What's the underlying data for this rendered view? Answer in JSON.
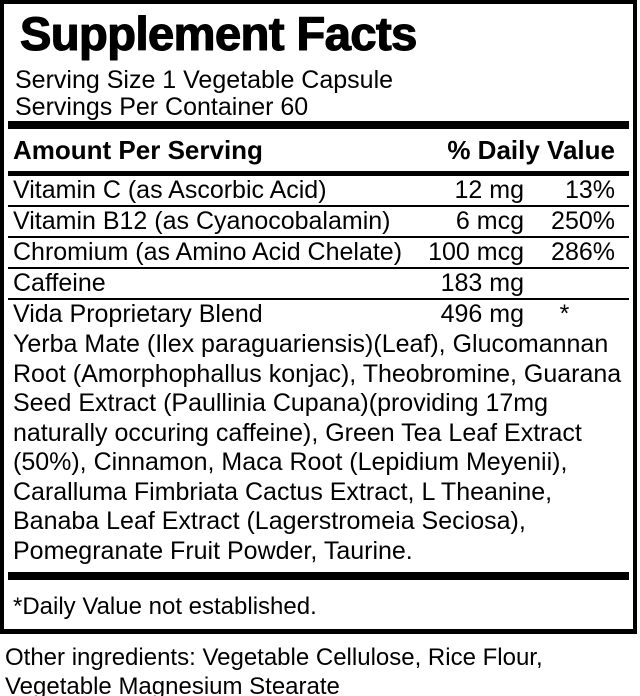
{
  "label": {
    "title": "Supplement Facts",
    "serving_lines": [
      "Serving Size 1 Vegetable Capsule",
      "Servings Per Container 60"
    ],
    "columns": {
      "amount_header": "Amount Per Serving",
      "dv_header": "% Daily Value"
    },
    "nutrients": [
      {
        "name": "Vitamin C (as Ascorbic Acid)",
        "amount": "12 mg",
        "dv": "13%"
      },
      {
        "name": "Vitamin B12 (as Cyanocobalamin)",
        "amount": "6 mcg",
        "dv": "250%"
      },
      {
        "name": "Chromium (as Amino Acid Chelate)",
        "amount": "100 mcg",
        "dv": "286%"
      },
      {
        "name": "Caffeine",
        "amount": "183 mg",
        "dv": ""
      },
      {
        "name": "Vida Proprietary Blend",
        "amount": "496 mg",
        "dv": "*"
      }
    ],
    "blend_description_lines": [
      "Yerba Mate (Ilex paraguariensis)(Leaf), Glucomannan",
      "Root (Amorphophallus konjac), Theobromine, Guarana",
      "Seed Extract (Paullinia Cupana)(providing 17mg",
      "naturally occuring caffeine), Green Tea Leaf Extract",
      "(50%), Cinnamon, Maca Root (Lepidium Meyenii),",
      "Caralluma Fimbriata Cactus Extract, L Theanine,",
      "Banaba Leaf Extract (Lagerstromeia Seciosa),",
      "Pomegranate Fruit Powder, Taurine."
    ],
    "footnote": "*Daily Value not established.",
    "colors": {
      "ink": "#000000",
      "paper": "#ffffff"
    }
  },
  "other_ingredients_lines": [
    "Other ingredients: Vegetable Cellulose, Rice Flour,",
    "Vegetable Magnesium Stearate"
  ]
}
